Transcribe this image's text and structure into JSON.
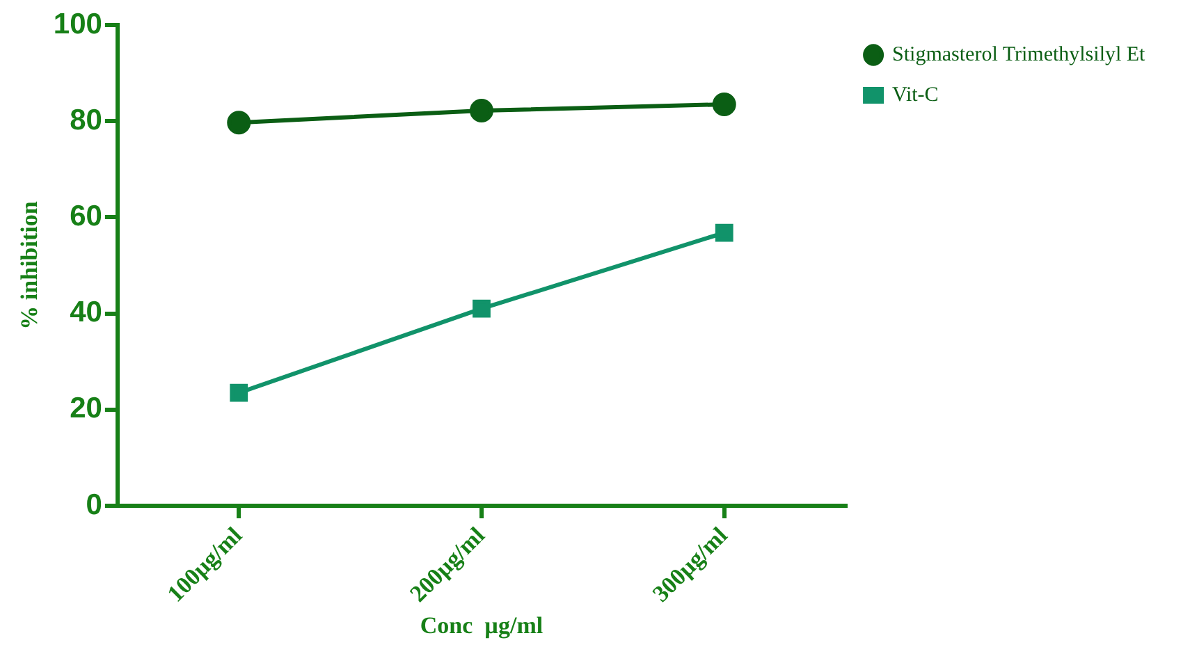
{
  "chart_data": {
    "type": "line",
    "xlabel": "Conc  µg/ml",
    "ylabel": "% inhibition",
    "categories": [
      "100µg/ml",
      "200µg/ml",
      "300µg/ml"
    ],
    "series": [
      {
        "name": "Stigmasterol Trimethylsilyl Et",
        "color": "#0b5e14",
        "marker": "circle",
        "values": [
          79.7,
          82.2,
          83.5
        ]
      },
      {
        "name": "Vit-C",
        "color": "#11936a",
        "marker": "square",
        "values": [
          23.5,
          41,
          56.8
        ]
      }
    ],
    "ylim": [
      0,
      100
    ],
    "yticks": [
      0,
      20,
      40,
      60,
      80,
      100
    ],
    "grid": false,
    "legend": "top right",
    "line_style": "solid"
  }
}
